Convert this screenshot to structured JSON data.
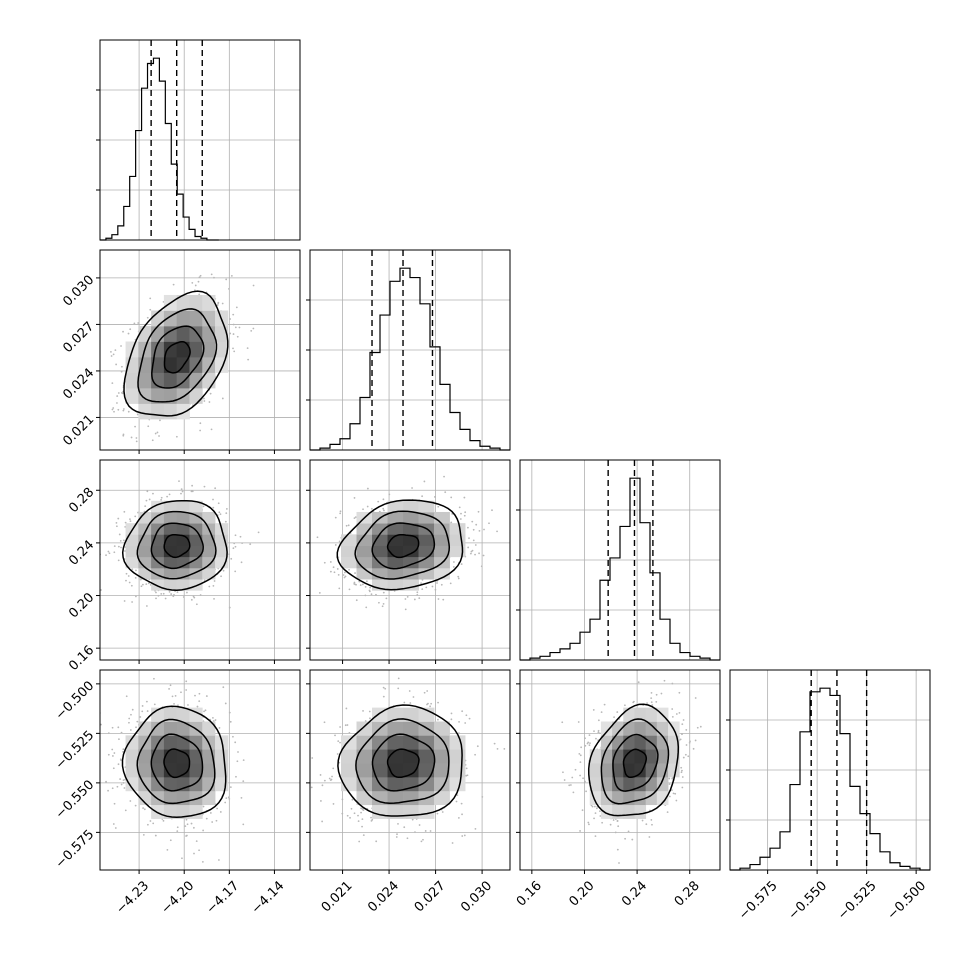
{
  "chart_data": {
    "type": "corner",
    "grid": true,
    "parameters": [
      {
        "median": -4.205,
        "q16": -4.222,
        "q84": -4.188,
        "sigma": 0.017,
        "range": [
          -4.256,
          -4.123
        ],
        "ticks": [
          -4.23,
          -4.2,
          -4.17,
          -4.14
        ],
        "tick_labels": [
          "−4.23",
          "−4.20",
          "−4.17",
          "−4.14"
        ],
        "hist": [
          0,
          1,
          3,
          8,
          19,
          36,
          62,
          86,
          100,
          103,
          90,
          66,
          43,
          26,
          13,
          6,
          2,
          1,
          0,
          0
        ],
        "hist_range": [
          -4.256,
          -4.177
        ]
      },
      {
        "median": 0.0249,
        "q16": 0.0229,
        "q84": 0.0268,
        "sigma": 0.002,
        "range": [
          0.0189,
          0.0318
        ],
        "ticks": [
          0.021,
          0.024,
          0.027,
          0.03
        ],
        "tick_labels": [
          "0.021",
          "0.024",
          "0.027",
          "0.030"
        ],
        "hist": [
          0,
          1,
          3,
          6,
          14,
          28,
          52,
          72,
          90,
          97,
          92,
          78,
          55,
          35,
          20,
          11,
          5,
          2,
          1,
          0
        ],
        "hist_range": [
          0.0189,
          0.0318
        ]
      },
      {
        "median": 0.238,
        "q16": 0.218,
        "q84": 0.252,
        "sigma": 0.017,
        "range": [
          0.151,
          0.303
        ],
        "ticks": [
          0.16,
          0.2,
          0.24,
          0.28
        ],
        "tick_labels": [
          "0.16",
          "0.20",
          "0.24",
          "0.28"
        ],
        "hist": [
          0,
          1,
          2,
          4,
          6,
          9,
          15,
          22,
          43,
          55,
          72,
          98,
          74,
          47,
          22,
          9,
          4,
          2,
          1,
          0
        ],
        "hist_range": [
          0.151,
          0.303
        ]
      },
      {
        "median": -0.54,
        "q16": -0.553,
        "q84": -0.525,
        "sigma": 0.014,
        "range": [
          -0.594,
          -0.493
        ],
        "ticks": [
          -0.575,
          -0.55,
          -0.525,
          -0.5
        ],
        "tick_labels": [
          "−0.575",
          "−0.550",
          "−0.525",
          "−0.500"
        ],
        "hist": [
          0,
          1,
          3,
          7,
          12,
          21,
          47,
          76,
          98,
          100,
          96,
          75,
          46,
          31,
          20,
          10,
          4,
          2,
          1,
          0
        ],
        "hist_range": [
          -0.594,
          -0.493
        ]
      }
    ],
    "correlations": [
      {
        "row": 1,
        "col": 0,
        "rho": 0.35
      },
      {
        "row": 2,
        "col": 0,
        "rho": 0.05
      },
      {
        "row": 2,
        "col": 1,
        "rho": 0.15
      },
      {
        "row": 3,
        "col": 0,
        "rho": -0.05
      },
      {
        "row": 3,
        "col": 1,
        "rho": 0.05
      },
      {
        "row": 3,
        "col": 2,
        "rho": 0.2
      }
    ],
    "contour_levels_sigma": [
      0.5,
      1.0,
      1.5,
      2.0
    ],
    "scatter_color": "#b8b8b8",
    "histogram_color": "#000000",
    "quantiles": [
      0.16,
      0.5,
      0.84
    ]
  }
}
